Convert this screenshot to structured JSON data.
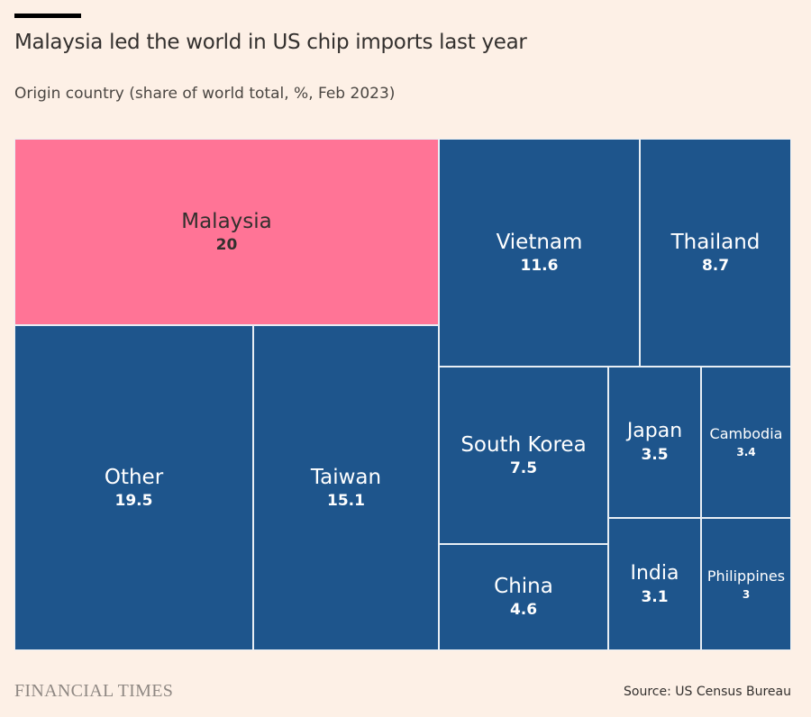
{
  "header": {
    "title": "Malaysia led the world in US chip imports last year",
    "subtitle": "Origin country (share of world total, %, Feb 2023)"
  },
  "chart_data": {
    "type": "treemap",
    "title": "Malaysia led the world in US chip imports last year",
    "subtitle": "Origin country (share of world total, %, Feb 2023)",
    "unit": "%",
    "items": [
      {
        "name": "Malaysia",
        "value": 20,
        "label": "20",
        "color": "#FF7496",
        "highlight": true
      },
      {
        "name": "Other",
        "value": 19.5,
        "label": "19.5",
        "color": "#1E558C"
      },
      {
        "name": "Taiwan",
        "value": 15.1,
        "label": "15.1",
        "color": "#1E558C"
      },
      {
        "name": "Vietnam",
        "value": 11.6,
        "label": "11.6",
        "color": "#1E558C"
      },
      {
        "name": "Thailand",
        "value": 8.7,
        "label": "8.7",
        "color": "#1E558C"
      },
      {
        "name": "South Korea",
        "value": 7.5,
        "label": "7.5",
        "color": "#1E558C"
      },
      {
        "name": "China",
        "value": 4.6,
        "label": "4.6",
        "color": "#1E558C"
      },
      {
        "name": "Japan",
        "value": 3.5,
        "label": "3.5",
        "color": "#1E558C"
      },
      {
        "name": "Cambodia",
        "value": 3.4,
        "label": "3.4",
        "color": "#1E558C"
      },
      {
        "name": "India",
        "value": 3.1,
        "label": "3.1",
        "color": "#1E558C"
      },
      {
        "name": "Philippines",
        "value": 3,
        "label": "3",
        "color": "#1E558C"
      }
    ]
  },
  "footer": {
    "logo": "FINANCIAL TIMES",
    "source": "Source: US Census Bureau"
  }
}
